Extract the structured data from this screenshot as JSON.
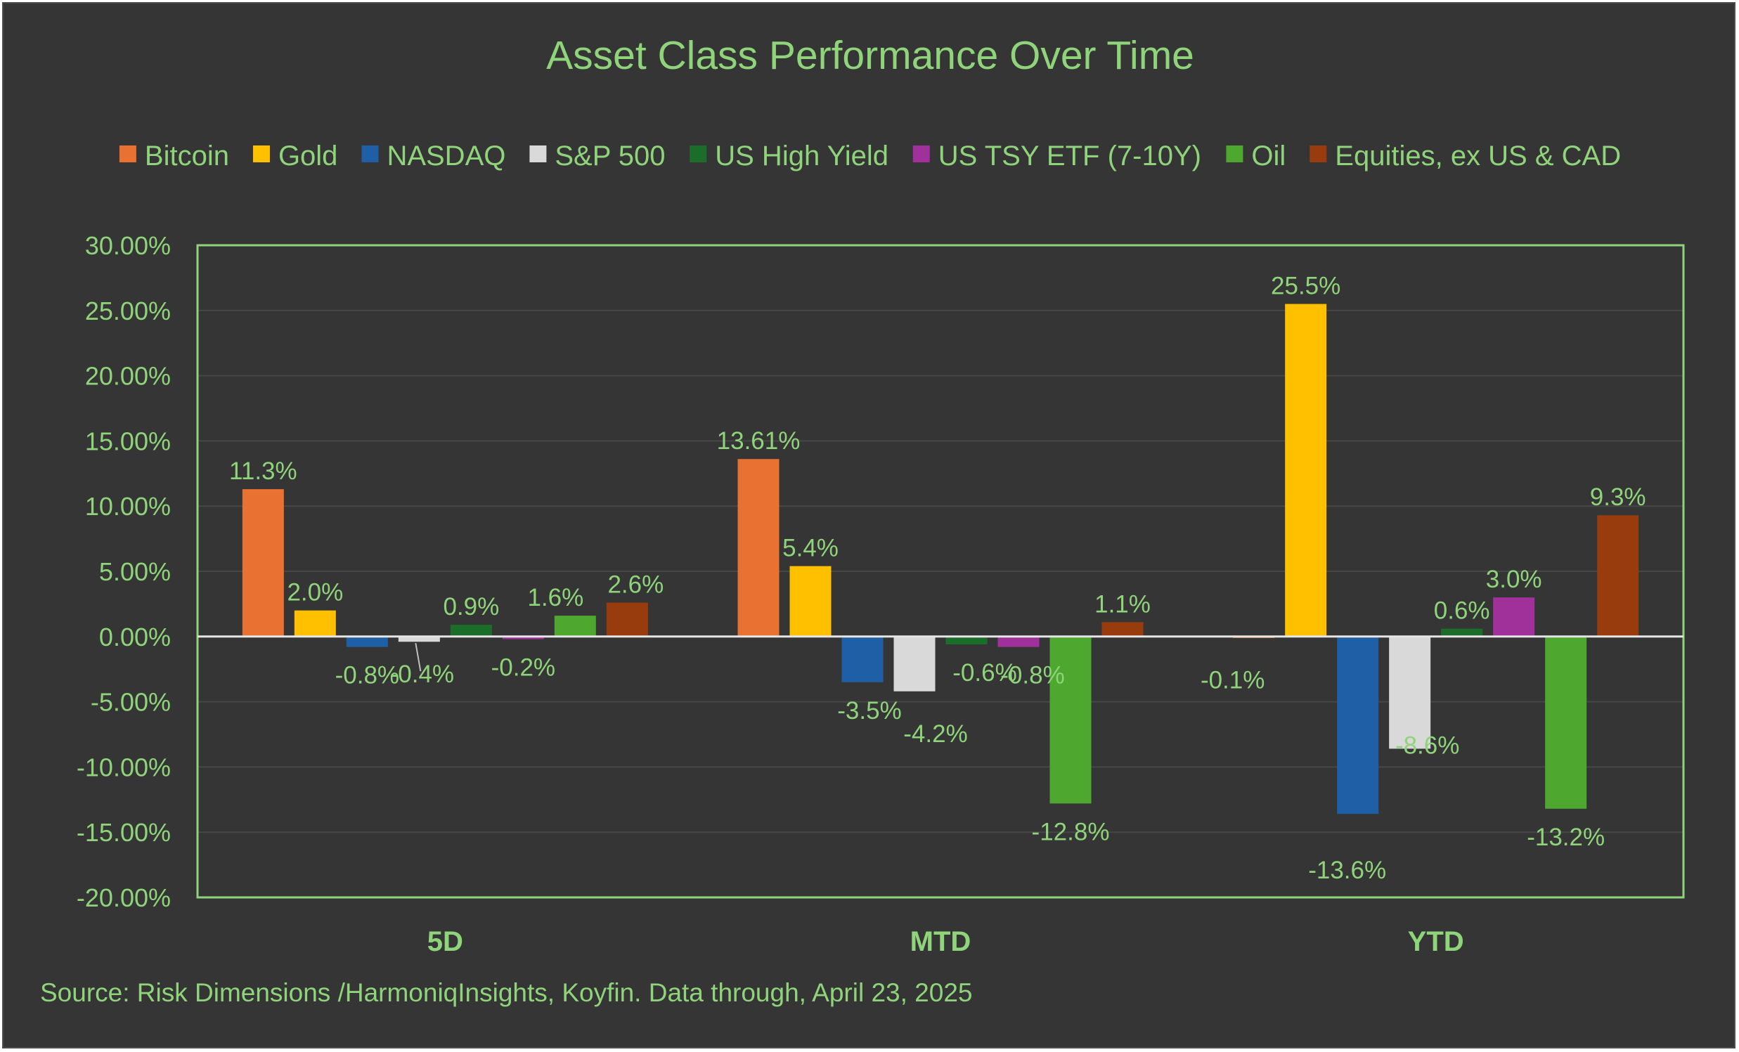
{
  "chart_data": {
    "type": "bar",
    "title": "Asset Class Performance Over Time",
    "categories": [
      "5D",
      "MTD",
      "YTD"
    ],
    "series": [
      {
        "name": "Bitcoin",
        "color": "#e97132",
        "values": [
          11.3,
          13.61,
          -0.1
        ],
        "labels": [
          "11.3%",
          "13.61%",
          "-0.1%"
        ]
      },
      {
        "name": "Gold",
        "color": "#ffc000",
        "values": [
          2.0,
          5.4,
          25.5
        ],
        "labels": [
          "2.0%",
          "5.4%",
          "25.5%"
        ]
      },
      {
        "name": "NASDAQ",
        "color": "#1f5fa6",
        "values": [
          -0.8,
          -3.5,
          -13.6
        ],
        "labels": [
          "-0.8%",
          "-3.5%",
          "-13.6%"
        ]
      },
      {
        "name": "S&P 500",
        "color": "#d9d9d9",
        "values": [
          -0.4,
          -4.2,
          -8.6
        ],
        "labels": [
          "-0.4%",
          "-4.2%",
          "-8.6%"
        ]
      },
      {
        "name": "US High Yield",
        "color": "#1b6e2a",
        "values": [
          0.9,
          -0.6,
          0.6
        ],
        "labels": [
          "0.9%",
          "-0.6%",
          "0.6%"
        ]
      },
      {
        "name": "US TSY ETF (7-10Y)",
        "color": "#a0309a",
        "values": [
          -0.2,
          -0.8,
          3.0
        ],
        "labels": [
          "-0.2%",
          "-0.8%",
          "3.0%"
        ]
      },
      {
        "name": "Oil",
        "color": "#4ea72e",
        "values": [
          1.6,
          -12.8,
          -13.2
        ],
        "labels": [
          "1.6%",
          "-12.8%",
          "-13.2%"
        ]
      },
      {
        "name": "Equities, ex US & CAD",
        "color": "#983c0e",
        "values": [
          2.6,
          1.1,
          9.3
        ],
        "labels": [
          "2.6%",
          "1.1%",
          "9.3%"
        ]
      }
    ],
    "ylim": [
      -20,
      30
    ],
    "yticks": [
      "30.00%",
      "25.00%",
      "20.00%",
      "15.00%",
      "10.00%",
      "5.00%",
      "0.00%",
      "-5.00%",
      "-10.00%",
      "-15.00%",
      "-20.00%"
    ],
    "ytick_values": [
      30,
      25,
      20,
      15,
      10,
      5,
      0,
      -5,
      -10,
      -15,
      -20
    ],
    "legend_position": "top",
    "grid": true,
    "xlabel": "",
    "ylabel": ""
  },
  "source_note": "Source: Risk Dimensions /HarmoniqInsights, Koyfin. Data through, April 23, 2025",
  "colors": {
    "background": "#353535",
    "text": "#8fd47a",
    "plot_border": "#8fd47a",
    "gridline": "#474747",
    "zero_line": "#e6e6e6"
  }
}
